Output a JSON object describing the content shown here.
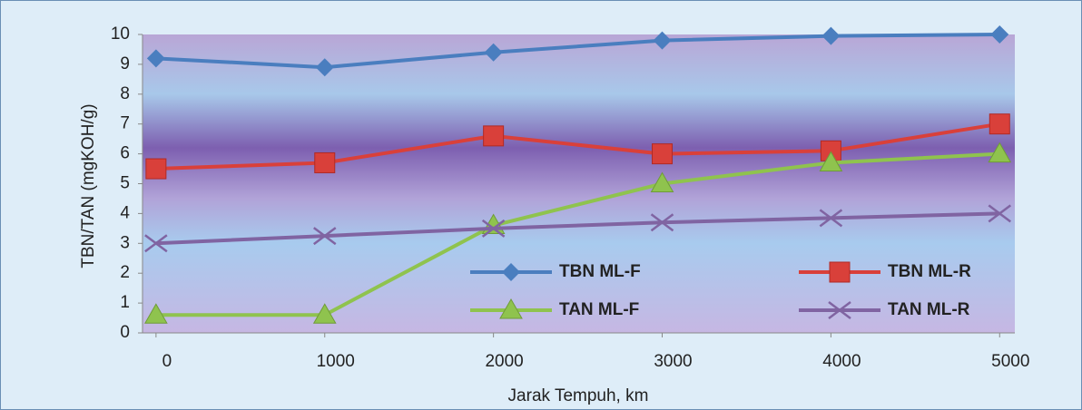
{
  "chart_data": {
    "type": "line",
    "x_label": "Jarak Tempuh, km",
    "y_label": "TBN/TAN (mgKOH/g)",
    "x": [
      0,
      1000,
      2000,
      3000,
      4000,
      5000
    ],
    "xlim": [
      -80,
      5090
    ],
    "xticks": [
      0,
      1000,
      2000,
      3000,
      4000,
      5000
    ],
    "ylim": [
      0,
      10
    ],
    "yticks": [
      0,
      1,
      2,
      3,
      4,
      5,
      6,
      7,
      8,
      9,
      10
    ],
    "grid": false,
    "legend": "lower right",
    "series": [
      {
        "name": "TBN ML-F",
        "color": "#4a7ebf",
        "marker": "diamond",
        "values": [
          9.2,
          8.9,
          9.4,
          9.8,
          9.95,
          10.0
        ]
      },
      {
        "name": "TBN ML-R",
        "color": "#d9403a",
        "marker": "square",
        "values": [
          5.5,
          5.7,
          6.6,
          6.0,
          6.1,
          7.0
        ]
      },
      {
        "name": "TAN ML-F",
        "color": "#8fc34e",
        "marker": "triangle",
        "values": [
          0.6,
          0.6,
          3.6,
          5.0,
          5.7,
          6.0
        ]
      },
      {
        "name": "TAN ML-R",
        "color": "#8064a2",
        "marker": "x",
        "values": [
          3.0,
          3.25,
          3.5,
          3.7,
          3.85,
          4.0
        ]
      }
    ]
  }
}
